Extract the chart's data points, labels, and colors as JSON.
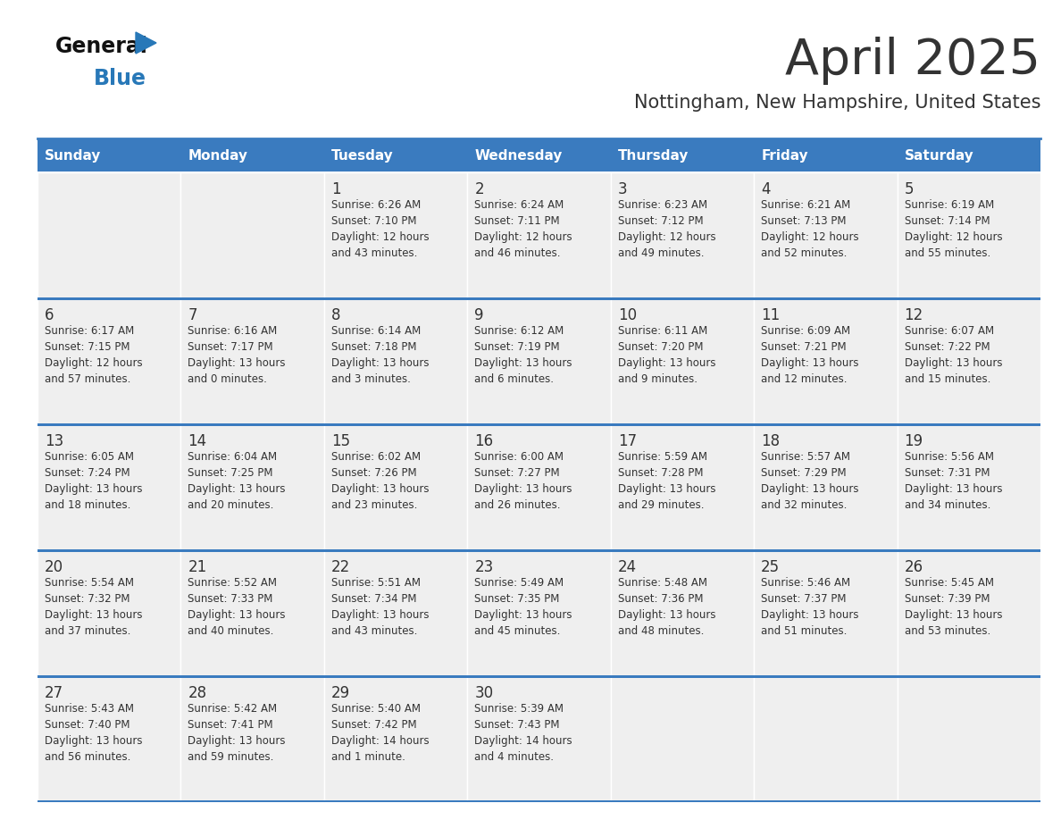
{
  "title": "April 2025",
  "subtitle": "Nottingham, New Hampshire, United States",
  "header_color": "#3a7bbf",
  "header_text_color": "#ffffff",
  "cell_bg_color": "#efefef",
  "border_color": "#3a7bbf",
  "text_color": "#333333",
  "days_of_week": [
    "Sunday",
    "Monday",
    "Tuesday",
    "Wednesday",
    "Thursday",
    "Friday",
    "Saturday"
  ],
  "weeks": [
    [
      {
        "day": "",
        "info": ""
      },
      {
        "day": "",
        "info": ""
      },
      {
        "day": "1",
        "info": "Sunrise: 6:26 AM\nSunset: 7:10 PM\nDaylight: 12 hours\nand 43 minutes."
      },
      {
        "day": "2",
        "info": "Sunrise: 6:24 AM\nSunset: 7:11 PM\nDaylight: 12 hours\nand 46 minutes."
      },
      {
        "day": "3",
        "info": "Sunrise: 6:23 AM\nSunset: 7:12 PM\nDaylight: 12 hours\nand 49 minutes."
      },
      {
        "day": "4",
        "info": "Sunrise: 6:21 AM\nSunset: 7:13 PM\nDaylight: 12 hours\nand 52 minutes."
      },
      {
        "day": "5",
        "info": "Sunrise: 6:19 AM\nSunset: 7:14 PM\nDaylight: 12 hours\nand 55 minutes."
      }
    ],
    [
      {
        "day": "6",
        "info": "Sunrise: 6:17 AM\nSunset: 7:15 PM\nDaylight: 12 hours\nand 57 minutes."
      },
      {
        "day": "7",
        "info": "Sunrise: 6:16 AM\nSunset: 7:17 PM\nDaylight: 13 hours\nand 0 minutes."
      },
      {
        "day": "8",
        "info": "Sunrise: 6:14 AM\nSunset: 7:18 PM\nDaylight: 13 hours\nand 3 minutes."
      },
      {
        "day": "9",
        "info": "Sunrise: 6:12 AM\nSunset: 7:19 PM\nDaylight: 13 hours\nand 6 minutes."
      },
      {
        "day": "10",
        "info": "Sunrise: 6:11 AM\nSunset: 7:20 PM\nDaylight: 13 hours\nand 9 minutes."
      },
      {
        "day": "11",
        "info": "Sunrise: 6:09 AM\nSunset: 7:21 PM\nDaylight: 13 hours\nand 12 minutes."
      },
      {
        "day": "12",
        "info": "Sunrise: 6:07 AM\nSunset: 7:22 PM\nDaylight: 13 hours\nand 15 minutes."
      }
    ],
    [
      {
        "day": "13",
        "info": "Sunrise: 6:05 AM\nSunset: 7:24 PM\nDaylight: 13 hours\nand 18 minutes."
      },
      {
        "day": "14",
        "info": "Sunrise: 6:04 AM\nSunset: 7:25 PM\nDaylight: 13 hours\nand 20 minutes."
      },
      {
        "day": "15",
        "info": "Sunrise: 6:02 AM\nSunset: 7:26 PM\nDaylight: 13 hours\nand 23 minutes."
      },
      {
        "day": "16",
        "info": "Sunrise: 6:00 AM\nSunset: 7:27 PM\nDaylight: 13 hours\nand 26 minutes."
      },
      {
        "day": "17",
        "info": "Sunrise: 5:59 AM\nSunset: 7:28 PM\nDaylight: 13 hours\nand 29 minutes."
      },
      {
        "day": "18",
        "info": "Sunrise: 5:57 AM\nSunset: 7:29 PM\nDaylight: 13 hours\nand 32 minutes."
      },
      {
        "day": "19",
        "info": "Sunrise: 5:56 AM\nSunset: 7:31 PM\nDaylight: 13 hours\nand 34 minutes."
      }
    ],
    [
      {
        "day": "20",
        "info": "Sunrise: 5:54 AM\nSunset: 7:32 PM\nDaylight: 13 hours\nand 37 minutes."
      },
      {
        "day": "21",
        "info": "Sunrise: 5:52 AM\nSunset: 7:33 PM\nDaylight: 13 hours\nand 40 minutes."
      },
      {
        "day": "22",
        "info": "Sunrise: 5:51 AM\nSunset: 7:34 PM\nDaylight: 13 hours\nand 43 minutes."
      },
      {
        "day": "23",
        "info": "Sunrise: 5:49 AM\nSunset: 7:35 PM\nDaylight: 13 hours\nand 45 minutes."
      },
      {
        "day": "24",
        "info": "Sunrise: 5:48 AM\nSunset: 7:36 PM\nDaylight: 13 hours\nand 48 minutes."
      },
      {
        "day": "25",
        "info": "Sunrise: 5:46 AM\nSunset: 7:37 PM\nDaylight: 13 hours\nand 51 minutes."
      },
      {
        "day": "26",
        "info": "Sunrise: 5:45 AM\nSunset: 7:39 PM\nDaylight: 13 hours\nand 53 minutes."
      }
    ],
    [
      {
        "day": "27",
        "info": "Sunrise: 5:43 AM\nSunset: 7:40 PM\nDaylight: 13 hours\nand 56 minutes."
      },
      {
        "day": "28",
        "info": "Sunrise: 5:42 AM\nSunset: 7:41 PM\nDaylight: 13 hours\nand 59 minutes."
      },
      {
        "day": "29",
        "info": "Sunrise: 5:40 AM\nSunset: 7:42 PM\nDaylight: 14 hours\nand 1 minute."
      },
      {
        "day": "30",
        "info": "Sunrise: 5:39 AM\nSunset: 7:43 PM\nDaylight: 14 hours\nand 4 minutes."
      },
      {
        "day": "",
        "info": ""
      },
      {
        "day": "",
        "info": ""
      },
      {
        "day": "",
        "info": ""
      }
    ]
  ]
}
